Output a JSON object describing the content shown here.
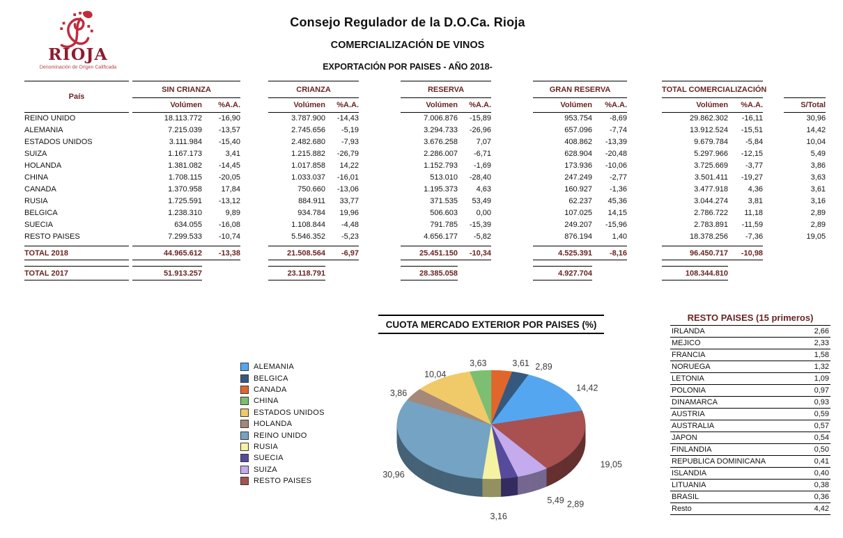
{
  "header": {
    "brand": "RIOJA",
    "brand_tagline": "Denominación de Origen Calificada",
    "title": "Consejo Regulador de la D.O.Ca. Rioja",
    "subtitle1": "COMERCIALIZACIÓN DE VINOS",
    "subtitle2": "EXPORTACIÓN  POR PAISES - AÑO 2018-"
  },
  "table": {
    "country_header": "País",
    "groups": [
      "SIN CRIANZA",
      "CRIANZA",
      "RESERVA",
      "GRAN RESERVA",
      "TOTAL COMERCIALIZACIÓN"
    ],
    "col_volume": "Volúmen",
    "col_aa": "%A.A.",
    "col_stotal": "S/Total",
    "rows": [
      {
        "country": "REINO UNIDO",
        "values": [
          "18.113.772",
          "-16,90",
          "3.787.900",
          "-14,43",
          "7.006.876",
          "-15,89",
          "953.754",
          "-8,69",
          "29.862.302",
          "-16,11"
        ],
        "stotal": "30,96"
      },
      {
        "country": "ALEMANIA",
        "values": [
          "7.215.039",
          "-13,57",
          "2.745.656",
          "-5,19",
          "3.294.733",
          "-26,96",
          "657.096",
          "-7,74",
          "13.912.524",
          "-15,51"
        ],
        "stotal": "14,42"
      },
      {
        "country": "ESTADOS UNIDOS",
        "values": [
          "3.111.984",
          "-15,40",
          "2.482.680",
          "-7,93",
          "3.676.258",
          "7,07",
          "408.862",
          "-13,39",
          "9.679.784",
          "-5,84"
        ],
        "stotal": "10,04"
      },
      {
        "country": "SUIZA",
        "values": [
          "1.167.173",
          "3,41",
          "1.215.882",
          "-26,79",
          "2.286.007",
          "-6,71",
          "628.904",
          "-20,48",
          "5.297.966",
          "-12,15"
        ],
        "stotal": "5,49"
      },
      {
        "country": "HOLANDA",
        "values": [
          "1.381.082",
          "-14,45",
          "1.017.858",
          "14,22",
          "1.152.793",
          "-1,69",
          "173.936",
          "-10,06",
          "3.725.669",
          "-3,77"
        ],
        "stotal": "3,86"
      },
      {
        "country": "CHINA",
        "values": [
          "1.708.115",
          "-20,05",
          "1.033.037",
          "-16,01",
          "513.010",
          "-28,40",
          "247.249",
          "-2,77",
          "3.501.411",
          "-19,27"
        ],
        "stotal": "3,63"
      },
      {
        "country": "CANADA",
        "values": [
          "1.370.958",
          "17,84",
          "750.660",
          "-13,06",
          "1.195.373",
          "4,63",
          "160.927",
          "-1,36",
          "3.477.918",
          "4,36"
        ],
        "stotal": "3,61"
      },
      {
        "country": "RUSIA",
        "values": [
          "1.725.591",
          "-13,12",
          "884.911",
          "33,77",
          "371.535",
          "53,49",
          "62.237",
          "45,36",
          "3.044.274",
          "3,81"
        ],
        "stotal": "3,16"
      },
      {
        "country": "BELGICA",
        "values": [
          "1.238.310",
          "9,89",
          "934.784",
          "19,96",
          "506.603",
          "0,00",
          "107.025",
          "14,15",
          "2.786.722",
          "11,18"
        ],
        "stotal": "2,89"
      },
      {
        "country": "SUECIA",
        "values": [
          "634.055",
          "-16,08",
          "1.108.844",
          "-4,48",
          "791.785",
          "-15,39",
          "249.207",
          "-15,96",
          "2.783.891",
          "-11,59"
        ],
        "stotal": "2,89"
      },
      {
        "country": "RESTO PAISES",
        "values": [
          "7.299.533",
          "-10,74",
          "5.546.352",
          "-5,23",
          "4.656.177",
          "-5,82",
          "876.194",
          "1,40",
          "18.378.256",
          "-7,36"
        ],
        "stotal": "19,05"
      }
    ],
    "total_2018": {
      "label": "TOTAL 2018",
      "values": [
        "44.965.612",
        "-13,38",
        "21.508.564",
        "-6,97",
        "25.451.150",
        "-10,34",
        "4.525.391",
        "-8,16",
        "96.450.717",
        "-10,98"
      ]
    },
    "total_2017": {
      "label": "TOTAL 2017",
      "volumes": [
        "51.913.257",
        "23.118.791",
        "28.385.058",
        "4.927.704",
        "108.344.810"
      ]
    }
  },
  "chart_data": {
    "type": "pie",
    "style": "3d",
    "title": "CUOTA MERCADO EXTERIOR POR PAISES (%)",
    "legend_position": "left",
    "start_angle_deg": 90,
    "direction": "clockwise",
    "legend_order": [
      "ALEMANIA",
      "BELGICA",
      "CANADA",
      "CHINA",
      "ESTADOS UNIDOS",
      "HOLANDA",
      "REINO UNIDO",
      "RUSIA",
      "SUECIA",
      "SUIZA",
      "RESTO PAISES"
    ],
    "slices": [
      {
        "name": "CANADA",
        "value": 3.61,
        "label": "3,61",
        "color": "#e0662c"
      },
      {
        "name": "BELGICA",
        "value": 2.89,
        "label": "2,89",
        "color": "#35587e"
      },
      {
        "name": "ALEMANIA",
        "value": 14.42,
        "label": "14,42",
        "color": "#55a6f0"
      },
      {
        "name": "RESTO PAISES",
        "value": 19.05,
        "label": "19,05",
        "color": "#a85150"
      },
      {
        "name": "SUIZA",
        "value": 5.49,
        "label": "5,49",
        "color": "#c3abee"
      },
      {
        "name": "SUECIA",
        "value": 2.89,
        "label": "2,89",
        "color": "#564a9c"
      },
      {
        "name": "RUSIA",
        "value": 3.16,
        "label": "3,16",
        "color": "#f5f2a2"
      },
      {
        "name": "REINO UNIDO",
        "value": 30.96,
        "label": "30,96",
        "color": "#74a3c4"
      },
      {
        "name": "HOLANDA",
        "value": 3.86,
        "label": "3,86",
        "color": "#a68878"
      },
      {
        "name": "ESTADOS UNIDOS",
        "value": 10.04,
        "label": "10,04",
        "color": "#f0ca68"
      },
      {
        "name": "CHINA",
        "value": 3.63,
        "label": "3,63",
        "color": "#7cbe72"
      }
    ]
  },
  "resto_paises": {
    "title": "RESTO PAISES (15 primeros)",
    "rows": [
      {
        "name": "IRLANDA",
        "value": "2,66"
      },
      {
        "name": "MEJICO",
        "value": "2,33"
      },
      {
        "name": "FRANCIA",
        "value": "1,58"
      },
      {
        "name": "NORUEGA",
        "value": "1,32"
      },
      {
        "name": "LETONIA",
        "value": "1,09"
      },
      {
        "name": "POLONIA",
        "value": "0,97"
      },
      {
        "name": "DINAMARCA",
        "value": "0,93"
      },
      {
        "name": "AUSTRIA",
        "value": "0,59"
      },
      {
        "name": "AUSTRALIA",
        "value": "0,57"
      },
      {
        "name": "JAPON",
        "value": "0,54"
      },
      {
        "name": "FINLANDIA",
        "value": "0,50"
      },
      {
        "name": "REPUBLICA DOMINICANA",
        "value": "0,41"
      },
      {
        "name": "ISLANDIA",
        "value": "0,40"
      },
      {
        "name": "LITUANIA",
        "value": "0,38"
      },
      {
        "name": "BRASIL",
        "value": "0,36"
      },
      {
        "name": "Resto",
        "value": "4,42"
      }
    ]
  }
}
